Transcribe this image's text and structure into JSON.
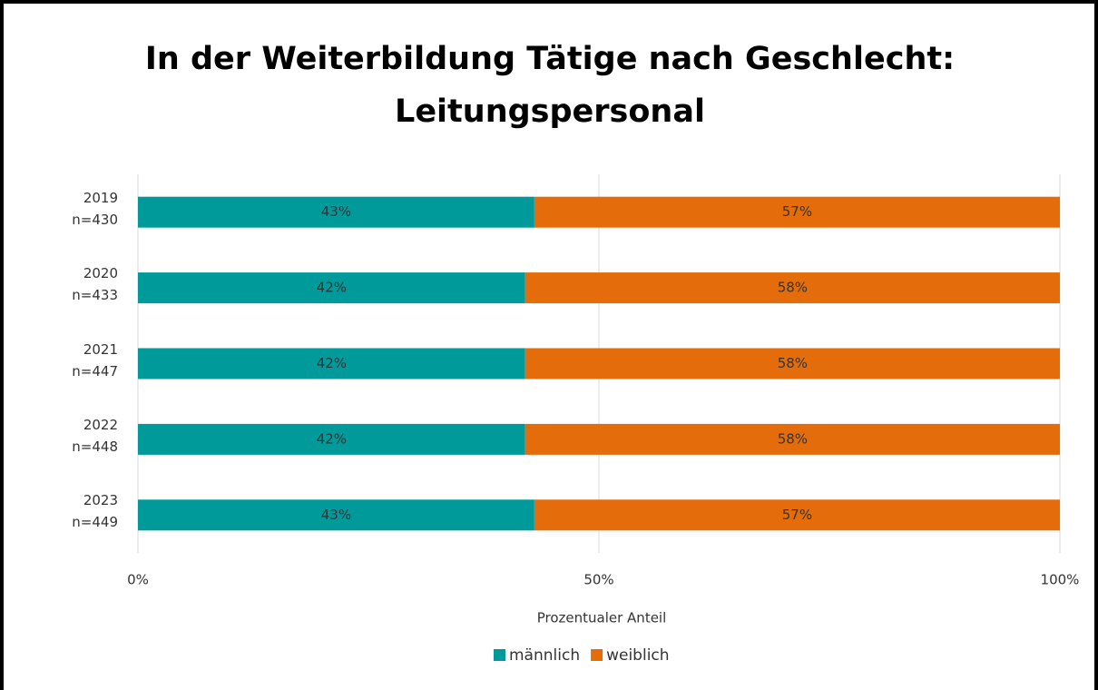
{
  "chart_data": {
    "type": "stacked_barh",
    "title": [
      "In der Weiterbildung Tätige nach Geschlecht:",
      "Leitungspersonal"
    ],
    "categories": [
      "2019\nn=430",
      "2020\nn=433",
      "2021\nn=447",
      "2022\nn=448",
      "2023\nn=449"
    ],
    "series": [
      {
        "name": "männlich",
        "color": "#009a9a",
        "values": [
          43,
          42,
          42,
          42,
          43
        ],
        "value_labels": [
          "43%",
          "42%",
          "42%",
          "42%",
          "43%"
        ]
      },
      {
        "name": "weiblich",
        "color": "#e46c0a",
        "values": [
          57,
          58,
          58,
          58,
          57
        ],
        "value_labels": [
          "57%",
          "58%",
          "58%",
          "58%",
          "57%"
        ]
      }
    ],
    "xlim": [
      0,
      100
    ],
    "xticks": [
      {
        "value": 0,
        "label": "0%"
      },
      {
        "value": 50,
        "label": "50%"
      },
      {
        "value": 100,
        "label": "100%"
      }
    ],
    "xlabel": "Prozentualer Anteil",
    "grid": true,
    "legend": "bottom"
  }
}
